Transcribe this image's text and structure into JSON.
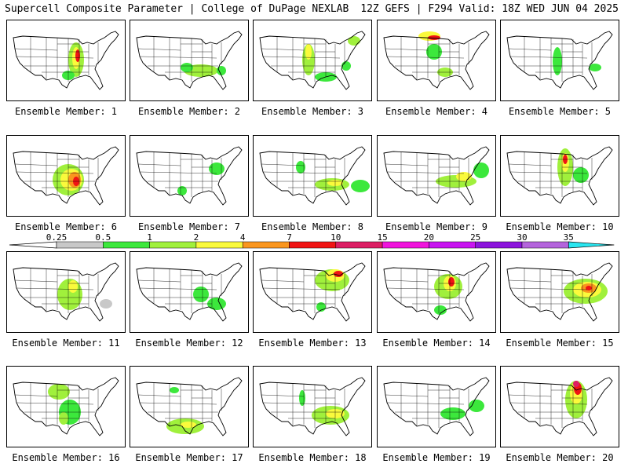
{
  "header": {
    "title_left": "Supercell Composite Parameter | College of DuPage NEXLAB",
    "title_right": "12Z GEFS | F294 Valid: 18Z WED JUN 04 2025"
  },
  "colorbar": {
    "labels": [
      "0.25",
      "0.5",
      "1",
      "2",
      "4",
      "7",
      "10",
      "15",
      "20",
      "25",
      "30",
      "35"
    ],
    "colors": [
      "#c8c8c8",
      "#3ce83c",
      "#a0f03c",
      "#fafa3c",
      "#fa961e",
      "#f01414",
      "#dc1e64",
      "#f014dc",
      "#c814f0",
      "#8c14dc",
      "#b464dc",
      "#28e6f0"
    ]
  },
  "members": [
    {
      "label": "Ensemble Member: 1"
    },
    {
      "label": "Ensemble Member: 2"
    },
    {
      "label": "Ensemble Member: 3"
    },
    {
      "label": "Ensemble Member: 4"
    },
    {
      "label": "Ensemble Member: 5"
    },
    {
      "label": "Ensemble Member: 6"
    },
    {
      "label": "Ensemble Member: 7"
    },
    {
      "label": "Ensemble Member: 8"
    },
    {
      "label": "Ensemble Member: 9"
    },
    {
      "label": "Ensemble Member: 10"
    },
    {
      "label": "Ensemble Member: 11"
    },
    {
      "label": "Ensemble Member: 12"
    },
    {
      "label": "Ensemble Member: 13"
    },
    {
      "label": "Ensemble Member: 14"
    },
    {
      "label": "Ensemble Member: 15"
    },
    {
      "label": "Ensemble Member: 16"
    },
    {
      "label": "Ensemble Member: 17"
    },
    {
      "label": "Ensemble Member: 18"
    },
    {
      "label": "Ensemble Member: 19"
    },
    {
      "label": "Ensemble Member: 20"
    }
  ]
}
